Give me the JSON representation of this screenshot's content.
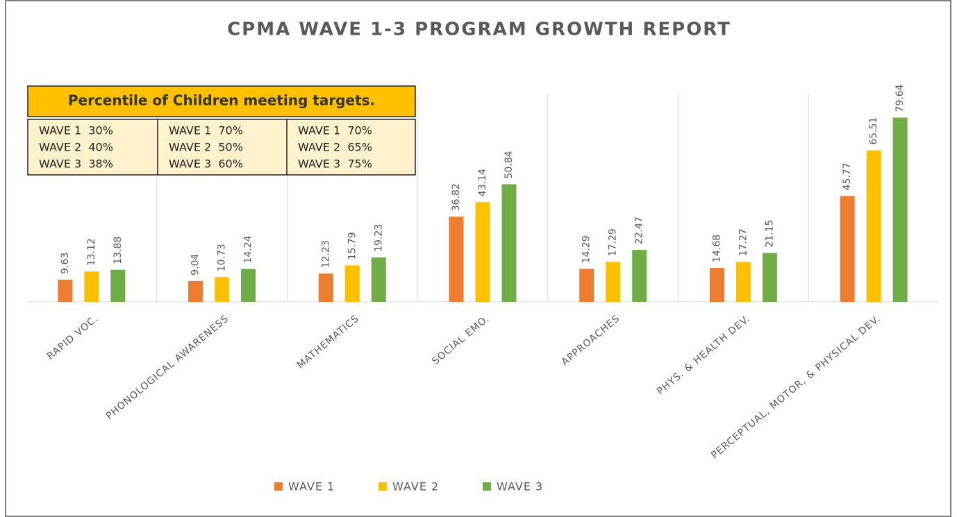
{
  "chart_data": {
    "type": "bar",
    "title": "CPMA WAVE 1-3 PROGRAM GROWTH REPORT",
    "categories": [
      "RAPID VOC.",
      "PHONOLOGICAL AWARENESS",
      "MATHEMATICS",
      "SOCIAL EMO.",
      "APPROACHES",
      "PHYS. & HEALTH DEV.",
      "PERCEPTUAL, MOTOR, & PHYSICAL DEV."
    ],
    "series": [
      {
        "name": "WAVE 1",
        "color": "#ed7d31",
        "values": [
          9.63,
          9.04,
          12.23,
          36.82,
          14.29,
          14.68,
          45.77
        ]
      },
      {
        "name": "WAVE 2",
        "color": "#ffc000",
        "values": [
          13.12,
          10.73,
          15.79,
          43.14,
          17.29,
          17.27,
          65.51
        ]
      },
      {
        "name": "WAVE 3",
        "color": "#70ad47",
        "values": [
          13.88,
          14.24,
          19.23,
          50.84,
          22.47,
          21.15,
          79.64
        ]
      }
    ],
    "ylim": [
      0,
      90
    ],
    "legend": "bottom",
    "annotation": {
      "title": "Percentile of Children meeting targets.",
      "columns": [
        [
          "WAVE 1  30%",
          "WAVE 2  40%",
          "WAVE 3  38%"
        ],
        [
          "WAVE 1  70%",
          "WAVE 2  50%",
          "WAVE 3  60%"
        ],
        [
          "WAVE 1  70%",
          "WAVE 2  65%",
          "WAVE 3  75%"
        ]
      ]
    }
  }
}
